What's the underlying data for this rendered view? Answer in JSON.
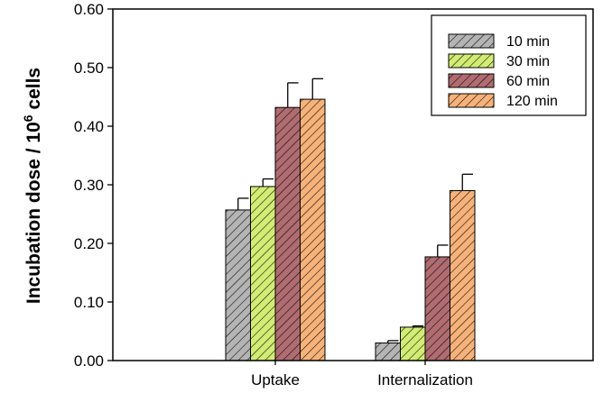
{
  "chart_data": {
    "type": "bar",
    "ylabel": "Incubation dose / 10",
    "ylabel_exponent": "6",
    "ylabel_suffix": " cells",
    "xlabel": "",
    "ylim": [
      0,
      0.6
    ],
    "yticks": [
      "0.00",
      "0.10",
      "0.20",
      "0.30",
      "0.40",
      "0.50",
      "0.60"
    ],
    "categories": [
      "Uptake",
      "Internalization"
    ],
    "error_bars": "upper",
    "legend_position": "top-right",
    "series": [
      {
        "name": "10 min",
        "color": "#b4b4b4",
        "values": [
          0.257,
          0.03
        ],
        "errors": [
          0.02,
          0.004
        ]
      },
      {
        "name": "30 min",
        "color": "#d2ec74",
        "values": [
          0.297,
          0.057
        ],
        "errors": [
          0.013,
          0.002
        ]
      },
      {
        "name": "60 min",
        "color": "#b06c70",
        "values": [
          0.432,
          0.177
        ],
        "errors": [
          0.042,
          0.02
        ]
      },
      {
        "name": "120 min",
        "color": "#f7b27a",
        "values": [
          0.446,
          0.29
        ],
        "errors": [
          0.035,
          0.028
        ]
      }
    ]
  }
}
